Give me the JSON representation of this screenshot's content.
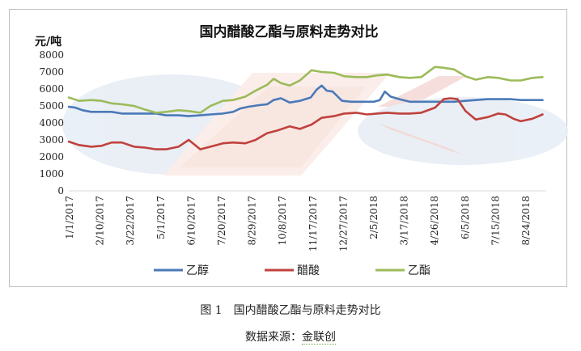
{
  "chart_data": {
    "type": "line",
    "title": "国内醋酸乙酯与原料走势对比",
    "ylabel": "元/吨",
    "xlabel": "",
    "ylim": [
      0,
      8000
    ],
    "yticks": [
      "8000",
      "7000",
      "6000",
      "5000",
      "4000",
      "3000",
      "2000",
      "1000",
      "0"
    ],
    "grid": false,
    "legend_position": "bottom",
    "xticks": [
      "1/1/2017",
      "2/10/2017",
      "3/22/2017",
      "5/1/2017",
      "6/10/2017",
      "7/20/2017",
      "8/29/2017",
      "10/8/2017",
      "11/17/2017",
      "12/27/2017",
      "2/5/2018",
      "3/17/2018",
      "4/26/2018",
      "6/5/2018",
      "7/15/2018",
      "8/24/2018"
    ],
    "x_range": [
      "2017-01-01",
      "2018-10-20"
    ],
    "series": [
      {
        "name": "乙醇",
        "color": "#4a7ab7",
        "points": [
          [
            "2017-01-01",
            4950
          ],
          [
            "2017-01-10",
            4900
          ],
          [
            "2017-01-20",
            4750
          ],
          [
            "2017-02-01",
            4650
          ],
          [
            "2017-02-15",
            4650
          ],
          [
            "2017-03-01",
            4650
          ],
          [
            "2017-03-15",
            4550
          ],
          [
            "2017-04-01",
            4550
          ],
          [
            "2017-04-15",
            4550
          ],
          [
            "2017-05-01",
            4550
          ],
          [
            "2017-05-15",
            4450
          ],
          [
            "2017-06-01",
            4450
          ],
          [
            "2017-06-15",
            4400
          ],
          [
            "2017-07-01",
            4450
          ],
          [
            "2017-07-15",
            4500
          ],
          [
            "2017-08-01",
            4550
          ],
          [
            "2017-08-15",
            4650
          ],
          [
            "2017-08-25",
            4850
          ],
          [
            "2017-09-05",
            4950
          ],
          [
            "2017-09-20",
            5050
          ],
          [
            "2017-10-01",
            5100
          ],
          [
            "2017-10-10",
            5350
          ],
          [
            "2017-10-20",
            5450
          ],
          [
            "2017-11-01",
            5200
          ],
          [
            "2017-11-15",
            5300
          ],
          [
            "2017-11-30",
            5500
          ],
          [
            "2017-12-08",
            5950
          ],
          [
            "2017-12-15",
            6200
          ],
          [
            "2017-12-22",
            5900
          ],
          [
            "2017-12-30",
            5850
          ],
          [
            "2018-01-05",
            5600
          ],
          [
            "2018-01-12",
            5300
          ],
          [
            "2018-01-25",
            5250
          ],
          [
            "2018-02-10",
            5250
          ],
          [
            "2018-02-25",
            5250
          ],
          [
            "2018-03-05",
            5350
          ],
          [
            "2018-03-12",
            5850
          ],
          [
            "2018-03-20",
            5550
          ],
          [
            "2018-04-01",
            5400
          ],
          [
            "2018-04-15",
            5250
          ],
          [
            "2018-05-01",
            5250
          ],
          [
            "2018-05-15",
            5250
          ],
          [
            "2018-06-01",
            5250
          ],
          [
            "2018-06-15",
            5250
          ],
          [
            "2018-07-01",
            5300
          ],
          [
            "2018-07-15",
            5350
          ],
          [
            "2018-08-01",
            5400
          ],
          [
            "2018-08-15",
            5400
          ],
          [
            "2018-09-01",
            5400
          ],
          [
            "2018-09-15",
            5350
          ],
          [
            "2018-10-01",
            5350
          ],
          [
            "2018-10-15",
            5350
          ]
        ]
      },
      {
        "name": "醋酸",
        "color": "#c0413d",
        "points": [
          [
            "2017-01-01",
            2900
          ],
          [
            "2017-01-15",
            2700
          ],
          [
            "2017-02-01",
            2600
          ],
          [
            "2017-02-15",
            2650
          ],
          [
            "2017-03-01",
            2850
          ],
          [
            "2017-03-15",
            2850
          ],
          [
            "2017-04-01",
            2600
          ],
          [
            "2017-04-15",
            2550
          ],
          [
            "2017-05-01",
            2450
          ],
          [
            "2017-05-15",
            2450
          ],
          [
            "2017-06-01",
            2600
          ],
          [
            "2017-06-15",
            3000
          ],
          [
            "2017-07-01",
            2450
          ],
          [
            "2017-07-15",
            2600
          ],
          [
            "2017-08-01",
            2800
          ],
          [
            "2017-08-15",
            2850
          ],
          [
            "2017-09-01",
            2800
          ],
          [
            "2017-09-15",
            3000
          ],
          [
            "2017-10-01",
            3400
          ],
          [
            "2017-10-15",
            3550
          ],
          [
            "2017-11-01",
            3800
          ],
          [
            "2017-11-15",
            3650
          ],
          [
            "2017-12-01",
            3900
          ],
          [
            "2017-12-15",
            4300
          ],
          [
            "2018-01-01",
            4400
          ],
          [
            "2018-01-15",
            4550
          ],
          [
            "2018-02-01",
            4600
          ],
          [
            "2018-02-15",
            4500
          ],
          [
            "2018-03-01",
            4550
          ],
          [
            "2018-03-15",
            4600
          ],
          [
            "2018-04-01",
            4550
          ],
          [
            "2018-04-15",
            4550
          ],
          [
            "2018-05-01",
            4600
          ],
          [
            "2018-05-20",
            4900
          ],
          [
            "2018-06-01",
            5400
          ],
          [
            "2018-06-10",
            5450
          ],
          [
            "2018-06-20",
            5400
          ],
          [
            "2018-07-01",
            4700
          ],
          [
            "2018-07-15",
            4200
          ],
          [
            "2018-08-01",
            4350
          ],
          [
            "2018-08-15",
            4550
          ],
          [
            "2018-08-25",
            4500
          ],
          [
            "2018-09-05",
            4250
          ],
          [
            "2018-09-15",
            4100
          ],
          [
            "2018-10-01",
            4250
          ],
          [
            "2018-10-15",
            4500
          ]
        ]
      },
      {
        "name": "乙酯",
        "color": "#9cbb59",
        "points": [
          [
            "2017-01-01",
            5500
          ],
          [
            "2017-01-15",
            5300
          ],
          [
            "2017-02-01",
            5350
          ],
          [
            "2017-02-15",
            5300
          ],
          [
            "2017-03-01",
            5150
          ],
          [
            "2017-03-15",
            5100
          ],
          [
            "2017-04-01",
            5000
          ],
          [
            "2017-04-15",
            4800
          ],
          [
            "2017-05-01",
            4600
          ],
          [
            "2017-05-15",
            4650
          ],
          [
            "2017-06-01",
            4750
          ],
          [
            "2017-06-15",
            4700
          ],
          [
            "2017-07-01",
            4600
          ],
          [
            "2017-07-15",
            5000
          ],
          [
            "2017-08-01",
            5300
          ],
          [
            "2017-08-15",
            5350
          ],
          [
            "2017-09-01",
            5550
          ],
          [
            "2017-09-15",
            5900
          ],
          [
            "2017-10-01",
            6250
          ],
          [
            "2017-10-10",
            6600
          ],
          [
            "2017-10-20",
            6350
          ],
          [
            "2017-11-01",
            6200
          ],
          [
            "2017-11-15",
            6500
          ],
          [
            "2017-12-01",
            7100
          ],
          [
            "2017-12-15",
            7000
          ],
          [
            "2018-01-01",
            6950
          ],
          [
            "2018-01-15",
            6750
          ],
          [
            "2018-02-01",
            6700
          ],
          [
            "2018-02-15",
            6700
          ],
          [
            "2018-03-01",
            6800
          ],
          [
            "2018-03-15",
            6850
          ],
          [
            "2018-04-01",
            6700
          ],
          [
            "2018-04-15",
            6650
          ],
          [
            "2018-05-01",
            6700
          ],
          [
            "2018-05-20",
            7300
          ],
          [
            "2018-06-01",
            7250
          ],
          [
            "2018-06-15",
            7150
          ],
          [
            "2018-07-01",
            6750
          ],
          [
            "2018-07-15",
            6550
          ],
          [
            "2018-08-01",
            6700
          ],
          [
            "2018-08-15",
            6650
          ],
          [
            "2018-09-01",
            6500
          ],
          [
            "2018-09-15",
            6500
          ],
          [
            "2018-10-01",
            6650
          ],
          [
            "2018-10-15",
            6700
          ]
        ]
      }
    ]
  },
  "caption": {
    "figure": "图 1　国内醋酸乙酯与原料走势对比",
    "source_prefix": "数据来源：",
    "source_name": "金联创"
  }
}
